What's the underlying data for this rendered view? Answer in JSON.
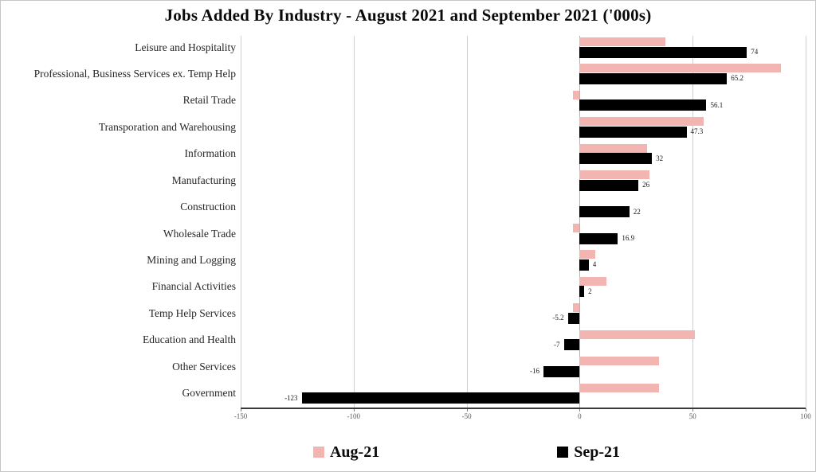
{
  "title": "Jobs Added By Industry - August 2021 and September 2021 ('000s)",
  "chart_data": {
    "type": "bar",
    "orientation": "horizontal",
    "title": "Jobs Added By Industry - August 2021 and September 2021 ('000s)",
    "xlabel": "",
    "ylabel": "",
    "categories": [
      "Leisure and Hospitality",
      "Professional, Business Services ex. Temp Help",
      "Retail Trade",
      "Transporation and Warehousing",
      "Information",
      "Manufacturing",
      "Construction",
      "Wholesale Trade",
      "Mining and Logging",
      "Financial Activities",
      "Temp Help Services",
      "Education and Health",
      "Other Services",
      "Government"
    ],
    "series": [
      {
        "name": "Aug-21",
        "color": "#f2b5b1",
        "show_labels": false,
        "values": [
          38,
          89,
          -3,
          55,
          30,
          31,
          0,
          -3,
          7,
          12,
          -3,
          51,
          35,
          35
        ]
      },
      {
        "name": "Sep-21",
        "color": "#000000",
        "show_labels": true,
        "values": [
          74,
          65.2,
          56.1,
          47.3,
          32,
          26,
          22,
          16.9,
          4,
          2,
          -5.2,
          -7,
          -16,
          -123
        ]
      }
    ],
    "xlim": [
      -150,
      100
    ],
    "xticks": [
      -150,
      -100,
      -50,
      0,
      50,
      100
    ],
    "grid": true,
    "legend_position": "bottom"
  }
}
